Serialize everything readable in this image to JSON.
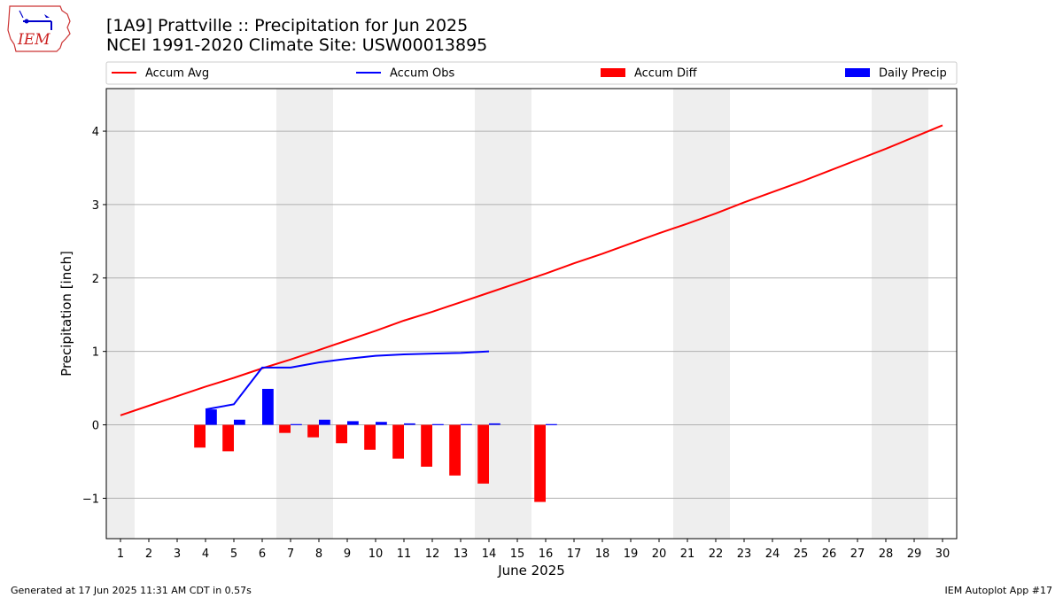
{
  "header": {
    "title_line1": "[1A9] Prattville :: Precipitation for Jun 2025",
    "title_line2": "NCEI 1991-2020 Climate Site: USW00013895"
  },
  "logo": {
    "text": "IEM"
  },
  "footer": {
    "left": "Generated at 17 Jun 2025 11:31 AM CDT in 0.57s",
    "right": "IEM Autoplot App #17"
  },
  "colors": {
    "accum_avg": "#ff0000",
    "accum_obs": "#0000ff",
    "accum_diff": "#ff0000",
    "daily_precip": "#0000ff",
    "weekend_shade": "#eeeeee",
    "grid": "#b0b0b0"
  },
  "chart_data": {
    "type": "bar+line",
    "xlabel": "June 2025",
    "ylabel": "Precipitation [inch]",
    "xlim": [
      0.5,
      30.5
    ],
    "ylim": [
      -1.55,
      4.58
    ],
    "yticks": [
      -1,
      0,
      1,
      2,
      3,
      4
    ],
    "ytick_labels": [
      "−1",
      "0",
      "1",
      "2",
      "3",
      "4"
    ],
    "xticks": [
      1,
      2,
      3,
      4,
      5,
      6,
      7,
      8,
      9,
      10,
      11,
      12,
      13,
      14,
      15,
      16,
      17,
      18,
      19,
      20,
      21,
      22,
      23,
      24,
      25,
      26,
      27,
      28,
      29,
      30
    ],
    "grid": "horizontal",
    "legend": {
      "placement": "top",
      "entries": [
        "Accum Avg",
        "Accum Obs",
        "Accum Diff",
        "Daily Precip"
      ]
    },
    "weekend_days": [
      1,
      7,
      8,
      14,
      15,
      21,
      22,
      28,
      29
    ],
    "series": [
      {
        "name": "Accum Avg",
        "kind": "line",
        "x": [
          1,
          2,
          3,
          4,
          5,
          6,
          7,
          8,
          9,
          10,
          11,
          12,
          13,
          14,
          15,
          16,
          17,
          18,
          19,
          20,
          21,
          22,
          23,
          24,
          25,
          26,
          27,
          28,
          29,
          30
        ],
        "values": [
          0.13,
          0.26,
          0.39,
          0.52,
          0.64,
          0.77,
          0.89,
          1.02,
          1.15,
          1.28,
          1.42,
          1.54,
          1.67,
          1.8,
          1.93,
          2.06,
          2.2,
          2.33,
          2.47,
          2.61,
          2.74,
          2.88,
          3.03,
          3.17,
          3.31,
          3.46,
          3.61,
          3.76,
          3.92,
          4.08
        ]
      },
      {
        "name": "Accum Obs",
        "kind": "line",
        "x": [
          4,
          5,
          6,
          7,
          8,
          9,
          10,
          11,
          12,
          13,
          14
        ],
        "values": [
          0.21,
          0.28,
          0.78,
          0.78,
          0.85,
          0.9,
          0.94,
          0.96,
          0.97,
          0.98,
          1.0
        ]
      },
      {
        "name": "Accum Diff",
        "kind": "bar",
        "x": [
          4,
          5,
          7,
          8,
          9,
          10,
          11,
          12,
          13,
          14,
          16
        ],
        "values": [
          -0.31,
          -0.36,
          -0.11,
          -0.17,
          -0.25,
          -0.34,
          -0.46,
          -0.57,
          -0.69,
          -0.8,
          -1.05
        ]
      },
      {
        "name": "Daily Precip",
        "kind": "bar",
        "x": [
          4,
          5,
          6,
          7,
          8,
          9,
          10,
          11,
          12,
          13,
          14,
          16
        ],
        "values": [
          0.21,
          0.07,
          0.49,
          0.01,
          0.07,
          0.05,
          0.04,
          0.02,
          0.01,
          0.01,
          0.02,
          0.01
        ]
      }
    ]
  }
}
